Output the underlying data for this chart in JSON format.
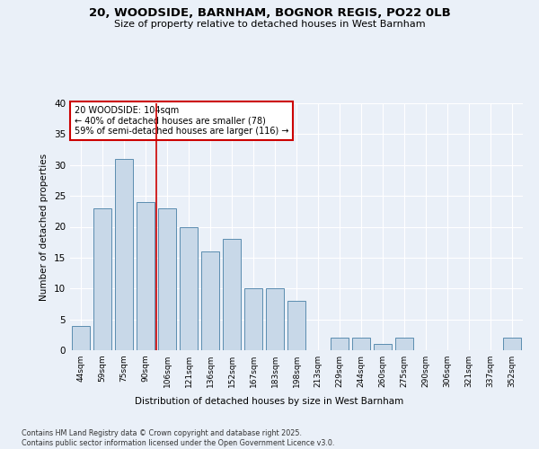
{
  "title_line1": "20, WOODSIDE, BARNHAM, BOGNOR REGIS, PO22 0LB",
  "title_line2": "Size of property relative to detached houses in West Barnham",
  "xlabel": "Distribution of detached houses by size in West Barnham",
  "ylabel": "Number of detached properties",
  "categories": [
    "44sqm",
    "59sqm",
    "75sqm",
    "90sqm",
    "106sqm",
    "121sqm",
    "136sqm",
    "152sqm",
    "167sqm",
    "183sqm",
    "198sqm",
    "213sqm",
    "229sqm",
    "244sqm",
    "260sqm",
    "275sqm",
    "290sqm",
    "306sqm",
    "321sqm",
    "337sqm",
    "352sqm"
  ],
  "values": [
    4,
    23,
    31,
    24,
    23,
    20,
    16,
    18,
    10,
    10,
    8,
    0,
    2,
    2,
    1,
    2,
    0,
    0,
    0,
    0,
    2
  ],
  "bar_color": "#c8d8e8",
  "bar_edge_color": "#5b8db0",
  "vline_color": "#cc0000",
  "vline_index": 3.5,
  "annotation_text": "20 WOODSIDE: 104sqm\n← 40% of detached houses are smaller (78)\n59% of semi-detached houses are larger (116) →",
  "annotation_box_edge": "#cc0000",
  "footer_line1": "Contains HM Land Registry data © Crown copyright and database right 2025.",
  "footer_line2": "Contains public sector information licensed under the Open Government Licence v3.0.",
  "bg_color": "#eaf0f8",
  "plot_bg_color": "#eaf0f8",
  "grid_color": "#ffffff",
  "ylim": [
    0,
    40
  ],
  "yticks": [
    0,
    5,
    10,
    15,
    20,
    25,
    30,
    35,
    40
  ]
}
